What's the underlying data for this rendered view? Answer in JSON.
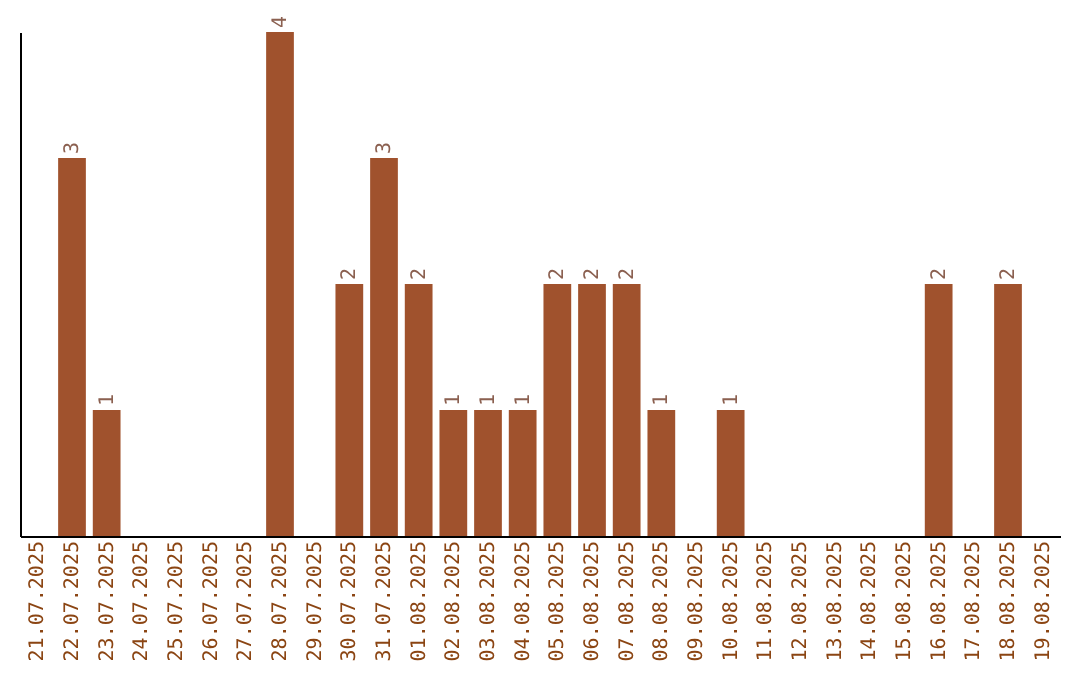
{
  "chart_data": {
    "type": "bar",
    "categories": [
      "21.07.2025",
      "22.07.2025",
      "23.07.2025",
      "24.07.2025",
      "25.07.2025",
      "26.07.2025",
      "27.07.2025",
      "28.07.2025",
      "29.07.2025",
      "30.07.2025",
      "31.07.2025",
      "01.08.2025",
      "02.08.2025",
      "03.08.2025",
      "04.08.2025",
      "05.08.2025",
      "06.08.2025",
      "07.08.2025",
      "08.08.2025",
      "09.08.2025",
      "10.08.2025",
      "11.08.2025",
      "12.08.2025",
      "13.08.2025",
      "14.08.2025",
      "15.08.2025",
      "16.08.2025",
      "17.08.2025",
      "18.08.2025",
      "19.08.2025"
    ],
    "values": [
      0,
      3,
      1,
      0,
      0,
      0,
      0,
      4,
      0,
      2,
      3,
      2,
      1,
      1,
      1,
      2,
      2,
      2,
      1,
      0,
      1,
      0,
      0,
      0,
      0,
      0,
      2,
      0,
      2,
      0
    ],
    "value_labels": [
      null,
      "3",
      "1",
      null,
      null,
      null,
      null,
      "4",
      null,
      "2",
      "3",
      "2",
      "1",
      "1",
      "1",
      "2",
      "2",
      "2",
      "1",
      null,
      "1",
      null,
      null,
      null,
      null,
      null,
      "2",
      null,
      "2",
      null
    ],
    "color": "#a0522d",
    "ylim": [
      0,
      4
    ]
  }
}
